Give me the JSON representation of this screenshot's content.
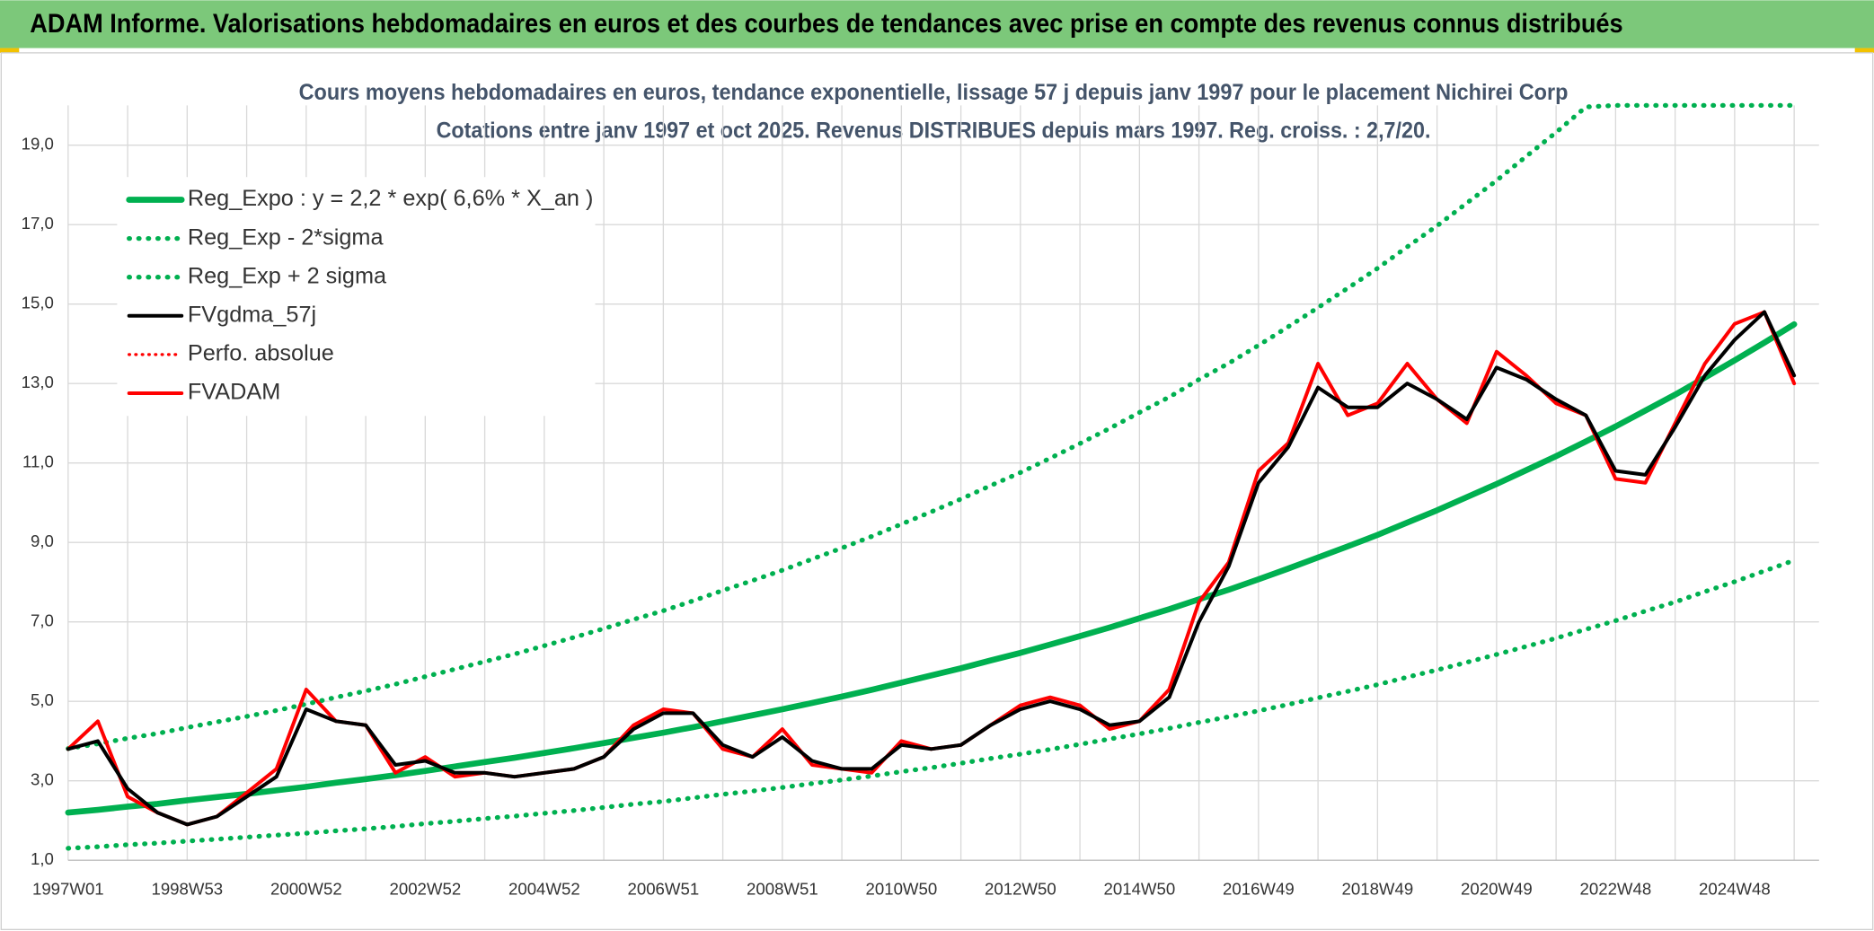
{
  "chart_data": {
    "type": "line",
    "header": "ADAM Informe. Valorisations hebdomadaires en euros et des courbes de tendances avec prise en compte des revenus connus distribués",
    "title": "Cours moyens hebdomadaires en euros, tendance exponentielle, lissage 57 j depuis janv 1997 pour le placement Nichirei Corp",
    "subtitle": "Cotations entre janv 1997 et oct 2025. Revenus DISTRIBUES depuis mars 1997. Reg. croiss. : 2,7/20.",
    "categories": [
      "1997W01",
      null,
      null,
      null,
      "1998W53",
      null,
      null,
      null,
      "2000W52",
      null,
      null,
      null,
      "2002W52",
      null,
      null,
      null,
      "2004W52",
      null,
      null,
      null,
      "2006W51",
      null,
      null,
      null,
      "2008W51",
      null,
      null,
      null,
      "2010W50",
      null,
      null,
      null,
      "2012W50",
      null,
      null,
      null,
      "2014W50",
      null,
      null,
      null,
      "2016W49",
      null,
      null,
      null,
      "2018W49",
      null,
      null,
      null,
      "2020W49",
      null,
      null,
      null,
      "2022W48",
      null,
      null,
      null,
      "2024W48",
      null,
      null
    ],
    "ylim": [
      1,
      20
    ],
    "yticks": [
      {
        "value": 1,
        "label": "1,0"
      },
      {
        "value": 3,
        "label": "3,0"
      },
      {
        "value": 5,
        "label": "5,0"
      },
      {
        "value": 7,
        "label": "7,0"
      },
      {
        "value": 9,
        "label": "9,0"
      },
      {
        "value": 11,
        "label": "11,0"
      },
      {
        "value": 13,
        "label": "13,0"
      },
      {
        "value": 15,
        "label": "15,0"
      },
      {
        "value": 17,
        "label": "17,0"
      },
      {
        "value": 19,
        "label": "19,0"
      }
    ],
    "grid": true,
    "legend": "top-left",
    "series": [
      {
        "name": "Reg_Expo : y = 2,2 * exp( 6,6% *  X_an )",
        "color": "#00b050",
        "style": "thick",
        "values": [
          2.2,
          2.27,
          2.35,
          2.42,
          2.51,
          2.59,
          2.67,
          2.76,
          2.85,
          2.95,
          3.04,
          3.14,
          3.25,
          3.36,
          3.47,
          3.58,
          3.7,
          3.82,
          3.95,
          4.08,
          4.21,
          4.35,
          4.5,
          4.65,
          4.8,
          4.96,
          5.12,
          5.29,
          5.47,
          5.65,
          5.83,
          6.03,
          6.22,
          6.43,
          6.64,
          6.86,
          7.09,
          7.32,
          7.57,
          7.81,
          8.07,
          8.34,
          8.62,
          8.9,
          9.19,
          9.5,
          9.81,
          10.14,
          10.47,
          10.82,
          11.17,
          11.54,
          11.92,
          12.32,
          12.72,
          13.15,
          13.58,
          14.03,
          14.49
        ]
      },
      {
        "name": "Reg_Exp - 2*sigma",
        "color": "#00b050",
        "style": "dotted",
        "values": [
          1.3,
          1.34,
          1.39,
          1.43,
          1.48,
          1.53,
          1.58,
          1.63,
          1.68,
          1.74,
          1.79,
          1.85,
          1.92,
          1.98,
          2.05,
          2.11,
          2.18,
          2.25,
          2.33,
          2.41,
          2.48,
          2.57,
          2.66,
          2.74,
          2.83,
          2.93,
          3.02,
          3.12,
          3.23,
          3.33,
          3.44,
          3.56,
          3.67,
          3.79,
          3.92,
          4.05,
          4.18,
          4.32,
          4.47,
          4.61,
          4.76,
          4.92,
          5.09,
          5.25,
          5.42,
          5.61,
          5.79,
          5.98,
          6.18,
          6.38,
          6.59,
          6.81,
          7.03,
          7.27,
          7.5,
          7.76,
          8.01,
          8.28,
          8.55
        ]
      },
      {
        "name": "Reg_Exp + 2 sigma",
        "color": "#00b050",
        "style": "dotted",
        "values": [
          3.81,
          3.93,
          4.07,
          4.19,
          4.34,
          4.48,
          4.62,
          4.77,
          4.93,
          5.1,
          5.26,
          5.43,
          5.62,
          5.81,
          6.0,
          6.19,
          6.4,
          6.61,
          6.83,
          7.06,
          7.28,
          7.53,
          7.79,
          8.04,
          8.3,
          8.58,
          8.86,
          9.15,
          9.46,
          9.77,
          10.09,
          10.43,
          10.76,
          11.12,
          11.49,
          11.87,
          12.27,
          12.66,
          13.1,
          13.51,
          13.96,
          14.43,
          14.91,
          15.4,
          15.9,
          16.44,
          16.97,
          17.54,
          18.11,
          18.72,
          19.32,
          19.96,
          20,
          20,
          20,
          20,
          20,
          20,
          20
        ]
      },
      {
        "name": "FVgdma_57j",
        "color": "#000000",
        "style": "solid",
        "values": [
          3.8,
          4.0,
          2.8,
          2.2,
          1.9,
          2.1,
          2.6,
          3.1,
          4.8,
          4.5,
          4.4,
          3.4,
          3.5,
          3.2,
          3.2,
          3.1,
          3.2,
          3.3,
          3.6,
          4.3,
          4.7,
          4.7,
          3.9,
          3.6,
          4.1,
          3.5,
          3.3,
          3.3,
          3.9,
          3.8,
          3.9,
          4.4,
          4.8,
          5.0,
          4.8,
          4.4,
          4.5,
          5.1,
          7.0,
          8.4,
          10.5,
          11.4,
          12.9,
          12.4,
          12.4,
          13.0,
          12.6,
          12.1,
          13.4,
          13.1,
          12.6,
          12.2,
          10.8,
          10.7,
          11.9,
          13.2,
          14.1,
          14.8,
          13.2
        ]
      },
      {
        "name": "Perfo. absolue",
        "color": "#ff0000",
        "style": "dotted",
        "values": [
          3.8,
          4.5,
          2.6,
          2.2,
          1.9,
          2.1,
          2.7,
          3.3,
          5.3,
          4.5,
          4.4,
          3.2,
          3.6,
          3.1,
          3.2,
          3.1,
          3.2,
          3.3,
          3.6,
          4.4,
          4.8,
          4.7,
          3.8,
          3.6,
          4.3,
          3.4,
          3.3,
          3.2,
          4.0,
          3.8,
          3.9,
          4.4,
          4.9,
          5.1,
          4.9,
          4.3,
          4.5,
          5.3,
          7.5,
          8.5,
          10.8,
          11.5,
          13.5,
          12.2,
          12.5,
          13.5,
          12.6,
          12.0,
          13.8,
          13.2,
          12.5,
          12.2,
          10.6,
          10.5,
          12.0,
          13.5,
          14.5,
          14.8,
          13.0
        ]
      },
      {
        "name": "FVADAM",
        "color": "#ff0000",
        "style": "solid",
        "values": [
          3.8,
          4.5,
          2.6,
          2.2,
          1.9,
          2.1,
          2.7,
          3.3,
          5.3,
          4.5,
          4.4,
          3.2,
          3.6,
          3.1,
          3.2,
          3.1,
          3.2,
          3.3,
          3.6,
          4.4,
          4.8,
          4.7,
          3.8,
          3.6,
          4.3,
          3.4,
          3.3,
          3.2,
          4.0,
          3.8,
          3.9,
          4.4,
          4.9,
          5.1,
          4.9,
          4.3,
          4.5,
          5.3,
          7.5,
          8.5,
          10.8,
          11.5,
          13.5,
          12.2,
          12.5,
          13.5,
          12.6,
          12.0,
          13.8,
          13.2,
          12.5,
          12.2,
          10.6,
          10.5,
          12.0,
          13.5,
          14.5,
          14.8,
          13.0
        ]
      }
    ]
  }
}
